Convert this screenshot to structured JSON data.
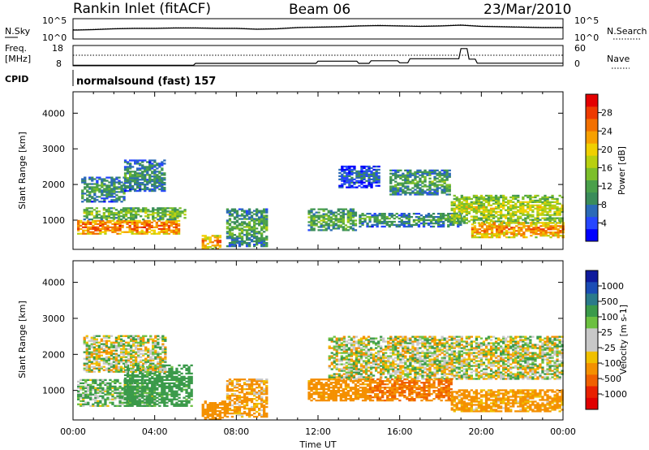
{
  "header": {
    "station": "Rankin Inlet (fitACF)",
    "beam": "Beam 06",
    "date": "23/Mar/2010"
  },
  "noise_panel": {
    "left_label": "N.Sky",
    "left_ticks": [
      "10^5",
      "10^0"
    ],
    "right_label": "N.Search",
    "right_ticks": [
      "10^5",
      "10^0"
    ],
    "line_style_right": "dotted"
  },
  "freq_panel": {
    "left_label_1": "Freq.",
    "left_label_2": "[MHz]",
    "left_ticks": [
      "18",
      "8"
    ],
    "right_label": "Nave",
    "right_ticks": [
      "60",
      "0"
    ]
  },
  "cpid": {
    "label": "CPID",
    "program": "normalsound (fast) 157"
  },
  "colors": {
    "power": [
      "#0000ff",
      "#2646ff",
      "#2b6ab8",
      "#3a8c5a",
      "#4aa04a",
      "#7cbf2a",
      "#b8d010",
      "#f0d000",
      "#f7a000",
      "#f27000",
      "#ee3a00",
      "#e40000"
    ],
    "velocity": [
      "#0f1a9c",
      "#1a4cb5",
      "#2a7a8a",
      "#3a9a4a",
      "#6cc040",
      "#c8c8c8",
      "#c8c8c8",
      "#f0c000",
      "#f49000",
      "#f06000",
      "#e82000",
      "#e00000"
    ]
  },
  "chart_data": [
    {
      "type": "line",
      "name": "noise",
      "x_unit": "hours UT",
      "x": [
        0,
        0.2,
        1,
        2,
        3,
        4,
        5,
        6,
        7,
        8,
        9,
        10,
        11,
        12,
        13,
        14,
        15,
        16,
        17,
        18,
        19,
        20,
        21,
        22,
        23,
        24
      ],
      "series": [
        {
          "name": "N.Sky",
          "values": [
            2.2,
            2.2,
            2.3,
            2.5,
            2.6,
            2.6,
            2.7,
            2.7,
            2.6,
            2.6,
            2.4,
            2.5,
            2.8,
            2.9,
            3.0,
            3.2,
            3.3,
            3.2,
            3.1,
            3.2,
            3.4,
            3.1,
            3.0,
            2.9,
            2.8,
            2.8
          ]
        },
        {
          "name": "N.Search",
          "values": [
            2.3,
            2.3,
            2.4,
            2.6,
            2.7,
            2.7,
            2.8,
            2.8,
            2.7,
            2.7,
            2.5,
            2.6,
            2.9,
            3.0,
            3.1,
            3.3,
            3.4,
            3.3,
            3.2,
            3.3,
            3.5,
            3.2,
            3.1,
            3.0,
            2.9,
            2.9
          ]
        }
      ],
      "ylim": [
        0,
        5
      ]
    },
    {
      "type": "line",
      "name": "frequency",
      "x_unit": "hours UT",
      "x": [
        0,
        5.9,
        6.0,
        11.9,
        12.0,
        13.9,
        14.0,
        14.5,
        14.6,
        15.9,
        16.0,
        16.4,
        16.5,
        18.9,
        19.0,
        19.3,
        19.4,
        19.7,
        19.8,
        24
      ],
      "series": [
        {
          "name": "Freq.",
          "values": [
            8.3,
            8.3,
            9.2,
            9.2,
            10.3,
            10.3,
            9.2,
            9.2,
            10.5,
            10.5,
            9.5,
            9.5,
            11.5,
            11.5,
            16.5,
            16.5,
            11.3,
            11.3,
            9.3,
            9.3
          ]
        }
      ],
      "ylim": [
        8,
        18
      ]
    },
    {
      "type": "heatmap",
      "name": "power",
      "xlabel": "",
      "ylabel": "Slant Range [km]",
      "colorbar_label": "Power [dB]",
      "colorbar_ticks": [
        "4",
        "8",
        "12",
        "16",
        "20",
        "24",
        "28"
      ],
      "xlim": [
        0,
        24
      ],
      "ylim": [
        180,
        4600
      ],
      "y_ticks": [
        1000,
        2000,
        3000,
        4000
      ],
      "echo_regions": [
        {
          "t0": 0.2,
          "t1": 5.2,
          "r0": 600,
          "r1": 1000,
          "db": 27
        },
        {
          "t0": 0.5,
          "t1": 5.5,
          "r0": 1000,
          "r1": 1350,
          "db": 17
        },
        {
          "t0": 0.4,
          "t1": 2.5,
          "r0": 1500,
          "r1": 2200,
          "db": 13
        },
        {
          "t0": 2.5,
          "t1": 4.5,
          "r0": 1800,
          "r1": 2700,
          "db": 12
        },
        {
          "t0": 6.3,
          "t1": 7.2,
          "r0": 180,
          "r1": 550,
          "db": 25
        },
        {
          "t0": 7.5,
          "t1": 9.5,
          "r0": 250,
          "r1": 1300,
          "db": 14
        },
        {
          "t0": 11.5,
          "t1": 13.8,
          "r0": 700,
          "r1": 1300,
          "db": 15
        },
        {
          "t0": 13.0,
          "t1": 15.0,
          "r0": 1900,
          "r1": 2500,
          "db": 9
        },
        {
          "t0": 14.0,
          "t1": 19.0,
          "r0": 800,
          "r1": 1200,
          "db": 13
        },
        {
          "t0": 15.5,
          "t1": 18.5,
          "r0": 1700,
          "r1": 2400,
          "db": 14
        },
        {
          "t0": 18.5,
          "t1": 24.0,
          "r0": 900,
          "r1": 1700,
          "db": 19
        },
        {
          "t0": 19.5,
          "t1": 24.0,
          "r0": 500,
          "r1": 950,
          "db": 25
        }
      ]
    },
    {
      "type": "heatmap",
      "name": "velocity",
      "xlabel": "Time UT",
      "ylabel": "Slant Range [km]",
      "colorbar_label": "Velocity [m s-1]",
      "colorbar_ticks": [
        "1000",
        "500",
        "100",
        "25",
        "-25",
        "-100",
        "-500",
        "-1000"
      ],
      "xlim": [
        0,
        24
      ],
      "ylim": [
        180,
        4600
      ],
      "y_ticks": [
        1000,
        2000,
        3000,
        4000
      ],
      "x_ticks": [
        "00:00",
        "04:00",
        "08:00",
        "12:00",
        "16:00",
        "20:00",
        "00:00"
      ],
      "echo_regions": [
        {
          "t0": 0.2,
          "t1": 4.0,
          "r0": 550,
          "r1": 1300,
          "v": 60
        },
        {
          "t0": 2.5,
          "t1": 5.8,
          "r0": 550,
          "r1": 1700,
          "v": 150
        },
        {
          "t0": 0.5,
          "t1": 4.5,
          "r0": 1500,
          "r1": 2500,
          "v": 0
        },
        {
          "t0": 6.3,
          "t1": 7.5,
          "r0": 180,
          "r1": 700,
          "v": -200
        },
        {
          "t0": 7.5,
          "t1": 9.5,
          "r0": 250,
          "r1": 1300,
          "v": -100
        },
        {
          "t0": 11.5,
          "t1": 14.5,
          "r0": 700,
          "r1": 1300,
          "v": -150
        },
        {
          "t0": 12.5,
          "t1": 24.0,
          "r0": 1300,
          "r1": 2500,
          "v": 0
        },
        {
          "t0": 14.5,
          "t1": 18.5,
          "r0": 700,
          "r1": 1300,
          "v": -300
        },
        {
          "t0": 18.5,
          "t1": 24.0,
          "r0": 400,
          "r1": 1000,
          "v": -120
        }
      ]
    }
  ]
}
